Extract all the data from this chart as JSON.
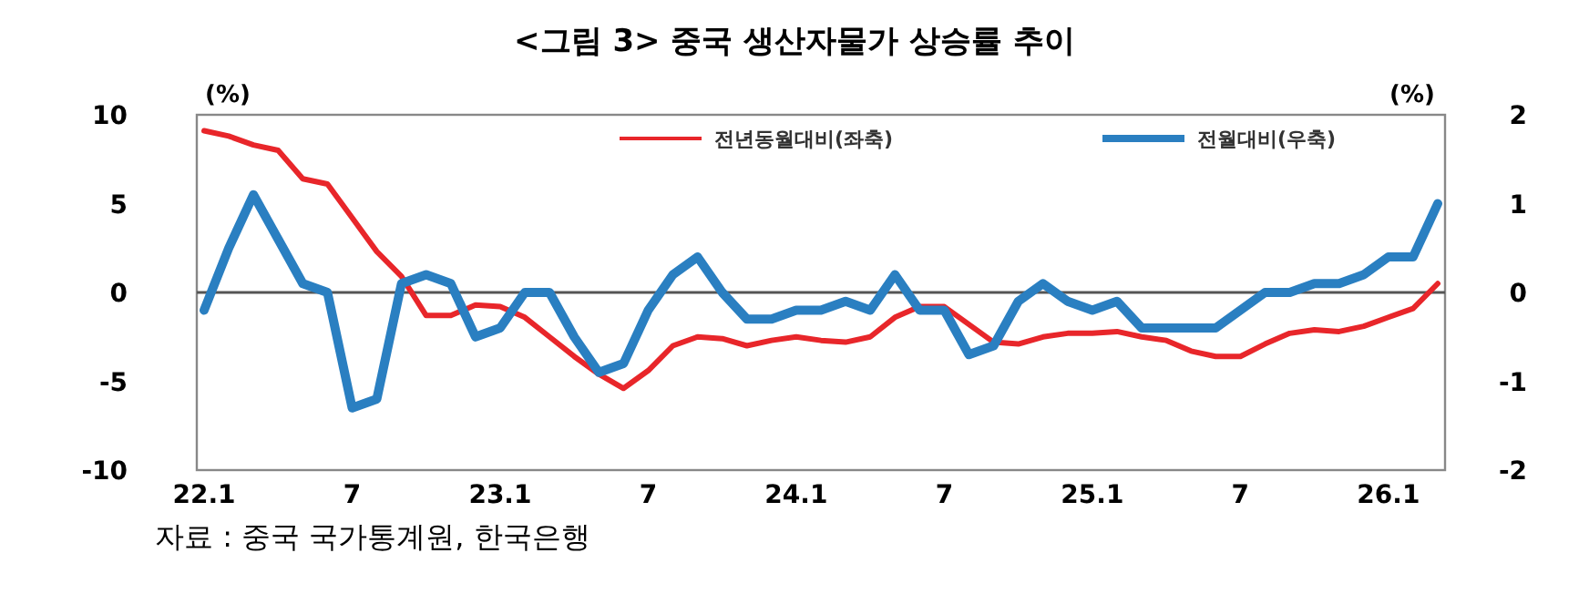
{
  "chart_data": {
    "type": "line",
    "title": "<그림 3> 중국 생산자물가 상승률 추이",
    "ylabel": "(%)",
    "y2label": "(%)",
    "categories": [
      "22.1",
      null,
      null,
      null,
      null,
      null,
      "7",
      null,
      null,
      null,
      null,
      null,
      "23.1",
      null,
      null,
      null,
      null,
      null,
      "7",
      null,
      null,
      null,
      null,
      null,
      "24.1",
      null,
      null,
      null,
      null,
      null,
      "7",
      null,
      null,
      null,
      null,
      null,
      "25.1",
      null,
      null,
      null,
      null,
      null,
      "7",
      null,
      null,
      null,
      null,
      null,
      "26.1",
      null,
      null
    ],
    "series": [
      {
        "name": "전년동월대비(좌축)",
        "color": "#e8262a",
        "values": [
          9.1,
          8.8,
          8.3,
          8.0,
          6.4,
          6.1,
          4.2,
          2.3,
          0.9,
          -1.3,
          -1.3,
          -0.7,
          -0.8,
          -1.4,
          -2.5,
          -3.6,
          -4.6,
          -5.4,
          -4.4,
          -3.0,
          -2.5,
          -2.6,
          -3.0,
          -2.7,
          -2.5,
          -2.7,
          -2.8,
          -2.5,
          -1.4,
          -0.8,
          -0.8,
          -1.8,
          -2.8,
          -2.9,
          -2.5,
          -2.3,
          -2.3,
          -2.2,
          -2.5,
          -2.7,
          -3.3,
          -3.6,
          -3.6,
          -2.9,
          -2.3,
          -2.1,
          -2.2,
          -1.9,
          -1.4,
          -0.9,
          0.5
        ]
      },
      {
        "name": "전월대비(우축)",
        "color": "#2a7fc1",
        "axis": "y2",
        "values": [
          -0.2,
          0.5,
          1.1,
          0.6,
          0.1,
          0.0,
          -1.3,
          -1.2,
          0.1,
          0.2,
          0.1,
          -0.5,
          -0.4,
          0.0,
          0.0,
          -0.5,
          -0.9,
          -0.8,
          -0.2,
          0.2,
          0.4,
          0.0,
          -0.3,
          -0.3,
          -0.2,
          -0.2,
          -0.1,
          -0.2,
          0.2,
          -0.2,
          -0.2,
          -0.7,
          -0.6,
          -0.1,
          0.1,
          -0.1,
          -0.2,
          -0.1,
          -0.4,
          -0.4,
          -0.4,
          -0.4,
          -0.2,
          0.0,
          0.0,
          0.1,
          0.1,
          0.2,
          0.4,
          0.4,
          1.0
        ]
      }
    ],
    "ylim": [
      -10,
      10
    ],
    "yticks": [
      -10,
      -5,
      0,
      5,
      10
    ],
    "y2lim": [
      -2,
      2
    ],
    "y2ticks": [
      -2,
      -1,
      0,
      1,
      2
    ],
    "ref_lines": [
      {
        "axis": "y",
        "value": 0,
        "color": "#555555"
      }
    ],
    "legend": "top",
    "grid": false,
    "annotations": [
      "자료 : 중국 국가통계원, 한국은행"
    ]
  }
}
